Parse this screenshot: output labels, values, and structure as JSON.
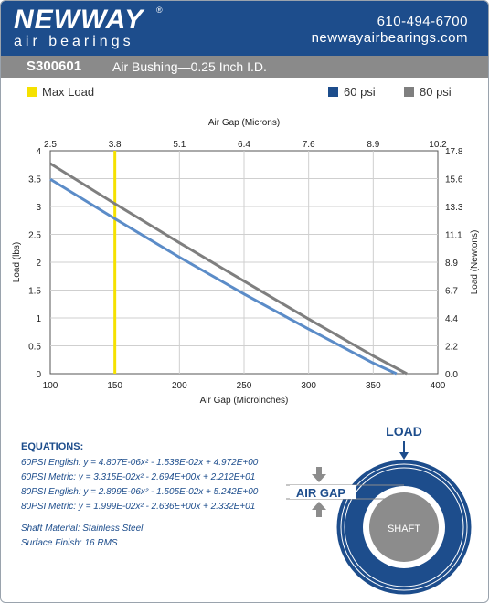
{
  "header": {
    "logo_main": "NEWWAY",
    "logo_sub": "air bearings",
    "registered_mark": "®",
    "phone": "610-494-6700",
    "website": "newwayairbearings.com"
  },
  "title": {
    "code": "S300601",
    "description": "Air Bushing—0.25 Inch I.D."
  },
  "colors": {
    "brand_blue": "#1d4d8c",
    "series_60": "#5b8cc8",
    "series_80": "#7f7f7f",
    "max_load": "#f5e100"
  },
  "legend": {
    "max_load": "Max Load",
    "psi60": "60 psi",
    "psi80": "80 psi"
  },
  "chart_data": {
    "type": "line",
    "title": "",
    "xlabel": "Air Gap (Microinches)",
    "x2label": "Air Gap (Microns)",
    "ylabel": "Load (lbs)",
    "y2label": "Load (Newtons)",
    "xlim": [
      100,
      400
    ],
    "ylim": [
      0,
      4
    ],
    "x_ticks": [
      100,
      150,
      200,
      250,
      300,
      350,
      400
    ],
    "y_ticks": [
      0,
      0.5,
      1,
      1.5,
      2,
      2.5,
      3,
      3.5,
      4
    ],
    "x2_tick_labels": [
      "2.5",
      "3.8",
      "5.1",
      "6.4",
      "7.6",
      "8.9",
      "10.2"
    ],
    "y2_tick_labels": [
      "0.0",
      "2.2",
      "4.4",
      "6.7",
      "8.9",
      "11.1",
      "13.3",
      "15.6",
      "17.8"
    ],
    "max_load_x": 150,
    "grid": true,
    "series": [
      {
        "name": "60 psi",
        "x": [
          100,
          150,
          200,
          250,
          300,
          350,
          368
        ],
        "y": [
          3.49,
          2.78,
          2.09,
          1.43,
          0.8,
          0.19,
          0
        ]
      },
      {
        "name": "80 psi",
        "x": [
          100,
          150,
          200,
          250,
          300,
          350,
          376
        ],
        "y": [
          3.77,
          3.05,
          2.35,
          1.66,
          0.98,
          0.32,
          0
        ]
      }
    ]
  },
  "equations": {
    "title": "EQUATIONS:",
    "lines": [
      "60PSI English:  y = 4.807E-06x² - 1.538E-02x + 4.972E+00",
      "60PSI Metric:  y = 3.315E-02x² - 2.694E+00x + 2.212E+01",
      "80PSI English:  y = 2.899E-06x² - 1.505E-02x + 5.242E+00",
      "80PSI Metric:  y = 1.999E-02x² - 2.636E+00x + 2.332E+01"
    ]
  },
  "specs": {
    "material": "Shaft Material:  Stainless Steel",
    "finish": "Surface Finish:  16 RMS"
  },
  "diagram": {
    "load": "LOAD",
    "air_gap": "AIR GAP",
    "shaft": "SHAFT"
  }
}
